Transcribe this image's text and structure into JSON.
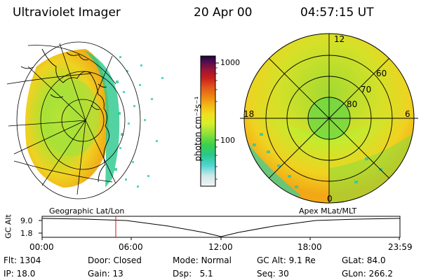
{
  "header": {
    "title": "Ultraviolet Imager",
    "date": "20 Apr 00",
    "time": "04:57:15 UT"
  },
  "left_panel": {
    "label": "Geographic Lat/Lon"
  },
  "right_panel": {
    "label": "Apex MLat/MLT",
    "mlt_labels": [
      "12",
      "18",
      "6",
      "0"
    ],
    "lat_labels": [
      "60",
      "70",
      "80"
    ]
  },
  "colorbar": {
    "unit_label": "photon cm⁻²s⁻¹",
    "ticks": [
      "1000",
      "100"
    ],
    "colors": [
      "#f4f4f4",
      "#cfe8ea",
      "#4dd6d2",
      "#28c88c",
      "#3ad24a",
      "#8ee03a",
      "#d6ee2c",
      "#f0e020",
      "#f3b814",
      "#ee8412",
      "#e2561a",
      "#c8201c",
      "#941438",
      "#4e0c54",
      "#180830"
    ]
  },
  "altitude_plot": {
    "ylabel": "GC Alt",
    "yticks": [
      "9.0",
      "1.8"
    ],
    "xticks": [
      "00:00",
      "06:00",
      "12:00",
      "18:00",
      "23:59"
    ]
  },
  "status": {
    "row1": [
      {
        "label": "Flt:",
        "value": "1304"
      },
      {
        "label": "Door:",
        "value": "Closed"
      },
      {
        "label": "Mode:",
        "value": "Normal"
      },
      {
        "label": "GC Alt:",
        "value": "9.1 Re"
      },
      {
        "label": "GLat:",
        "value": "84.0"
      }
    ],
    "row2": [
      {
        "label": "IP:",
        "value": "18.0"
      },
      {
        "label": "Gain:",
        "value": "13"
      },
      {
        "label": "Dsp:",
        "value": "5.1"
      },
      {
        "label": "Seq:",
        "value": "30"
      },
      {
        "label": "GLon:",
        "value": "266.2"
      }
    ]
  }
}
